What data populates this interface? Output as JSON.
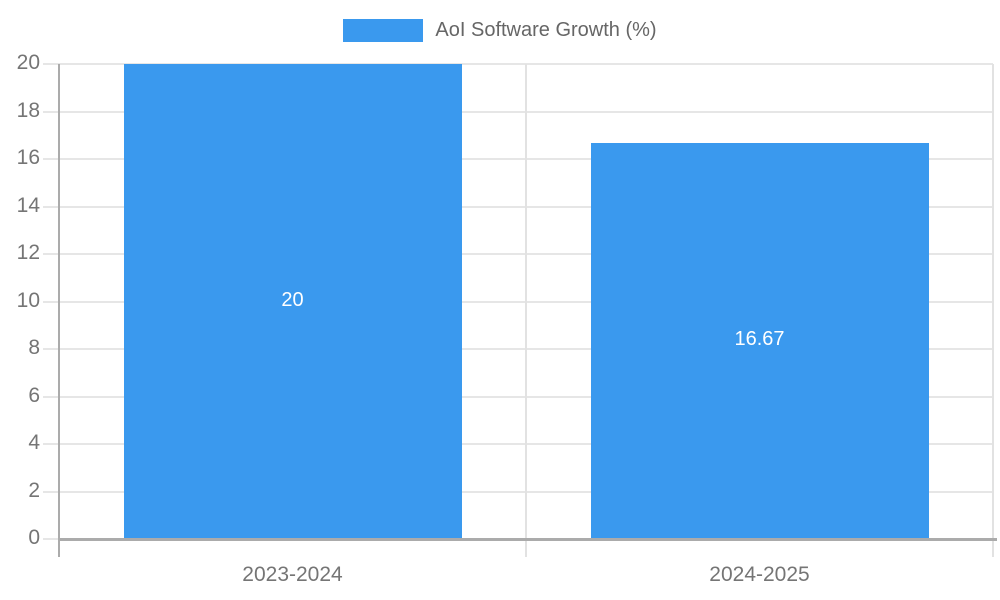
{
  "chart_data": {
    "type": "bar",
    "title": "",
    "legend": {
      "label": "AoI Software Growth (%)",
      "position": "top"
    },
    "categories": [
      "2023-2024",
      "2024-2025"
    ],
    "series": [
      {
        "name": "AoI Software Growth (%)",
        "values": [
          20,
          16.67
        ]
      }
    ],
    "value_labels": [
      "20",
      "16.67"
    ],
    "ylim": [
      0,
      20
    ],
    "yticks": [
      0,
      2,
      4,
      6,
      8,
      10,
      12,
      14,
      16,
      18,
      20
    ],
    "xlabel": "",
    "ylabel": "",
    "grid": true,
    "colors": {
      "bar": "#3A99EE",
      "grid_horizontal": "#E6E6E6",
      "grid_vertical": "#E2E2E2",
      "axis": "#ABABAB",
      "tick_label": "#757575",
      "legend_text": "#666666",
      "data_label": "#FFFFFF",
      "background": "#FFFFFF"
    }
  }
}
